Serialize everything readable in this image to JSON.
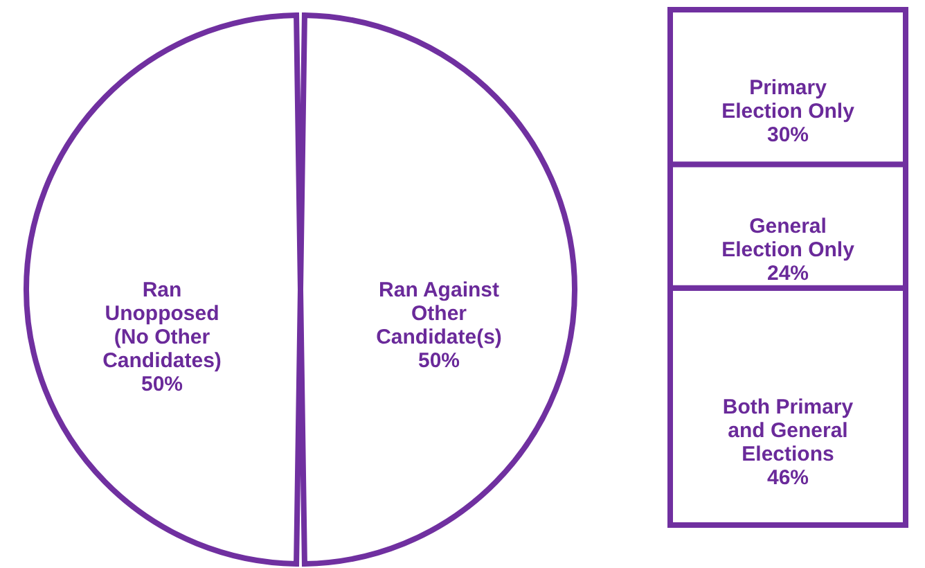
{
  "chart_data": [
    {
      "type": "pie",
      "categories": [
        "Ran Unopposed (No Other Candidates)",
        "Ran Against Other Candidate(s)"
      ],
      "values": [
        50,
        50
      ],
      "colors": [
        "#ffffff",
        "#ffffff"
      ],
      "value_labels": [
        "50%",
        "50%"
      ],
      "legend": false
    },
    {
      "type": "bar",
      "stacked": true,
      "categories": [
        null
      ],
      "series": [
        {
          "name": "Both Primary and General Elections",
          "color": "#ffffff",
          "values": [
            46
          ],
          "value_labels": [
            "46%"
          ]
        },
        {
          "name": "General Election Only",
          "color": "#ffffff",
          "values": [
            24
          ],
          "value_labels": [
            "24%"
          ]
        },
        {
          "name": "Primary Election Only",
          "color": "#ffffff",
          "values": [
            30
          ],
          "value_labels": [
            "30%"
          ]
        }
      ]
    }
  ]
}
